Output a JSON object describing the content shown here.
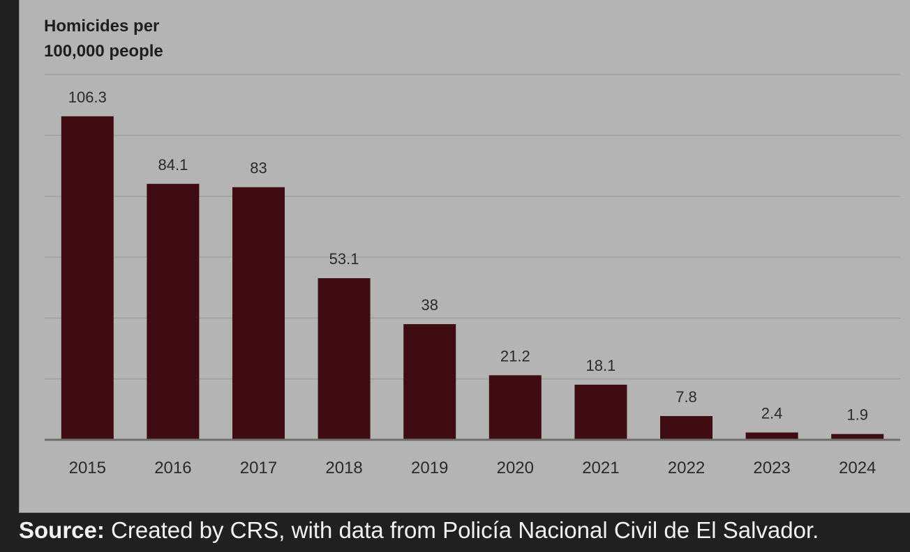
{
  "chart_data": {
    "type": "bar",
    "ylabel_lines": [
      "Homicides per",
      "100,000 people"
    ],
    "categories": [
      "2015",
      "2016",
      "2017",
      "2018",
      "2019",
      "2020",
      "2021",
      "2022",
      "2023",
      "2024"
    ],
    "values": [
      106.3,
      84.1,
      83,
      53.1,
      38,
      21.2,
      18.1,
      7.8,
      2.4,
      1.9
    ],
    "value_labels": [
      "106.3",
      "84.1",
      "83",
      "53.1",
      "38",
      "21.2",
      "18.1",
      "7.8",
      "2.4",
      "1.9"
    ],
    "ylim": [
      0,
      120
    ],
    "gridlines": [
      20,
      40,
      60,
      80,
      100,
      120
    ],
    "grid": true,
    "bar_color": "#3e0c11",
    "background_color": "#b4b4b4",
    "gridline_color": "#a0a0a0"
  },
  "source": {
    "label": "Source:",
    "text": " Created by CRS, with data from Policía Nacional Civil de El Salvador."
  }
}
